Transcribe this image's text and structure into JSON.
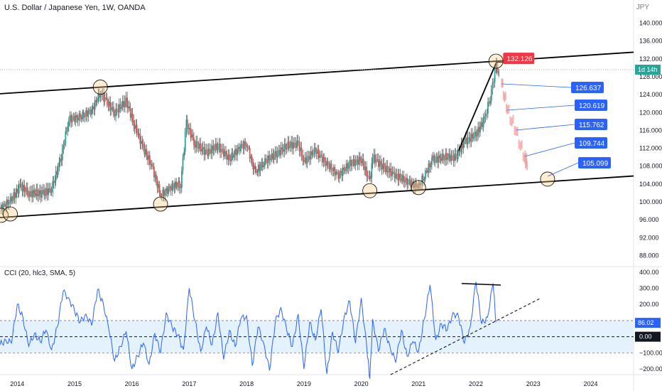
{
  "header": {
    "title": "U.S. Dollar / Japanese Yen, 1W, OANDA",
    "currency": "JPY"
  },
  "cci_panel": {
    "title": "CCI (20, hlc3, SMA, 5)",
    "current_value": "86.02",
    "zero_label": "0.00"
  },
  "price_axis": {
    "ticks": [
      "140.000",
      "136.000",
      "132.000",
      "128.000",
      "124.000",
      "120.000",
      "116.000",
      "112.000",
      "108.000",
      "104.000",
      "100.000",
      "96.000",
      "92.000",
      "88.000"
    ],
    "current_tag": "1d 14h"
  },
  "cci_axis": {
    "ticks": [
      "400.00",
      "300.00",
      "200.00",
      "−100.00",
      "−200.00"
    ]
  },
  "time_axis": {
    "ticks": [
      "2014",
      "2015",
      "2016",
      "2017",
      "2018",
      "2019",
      "2020",
      "2021",
      "2022",
      "2023",
      "2024"
    ]
  },
  "annotations": {
    "peak_label": "132.126",
    "targets": [
      "126.637",
      "120.619",
      "115.762",
      "109.744",
      "105.099"
    ]
  },
  "colors": {
    "up_candle": "#26a69a",
    "down_candle": "#ef5350",
    "cci_line": "#2962ff",
    "band_fill": "#e3f2fd",
    "peak_tag": "#f23645",
    "target_tag": "#2962ff",
    "current_tag": "#26a69a"
  },
  "chart_data": [
    {
      "type": "candlestick",
      "title": "U.S. Dollar / Japanese Yen, 1W, OANDA",
      "ylim": [
        86,
        142
      ],
      "xlim": [
        2013.7,
        2024.75
      ],
      "closes": [
        {
          "x": 2013.7,
          "y": 98.5
        },
        {
          "x": 2013.9,
          "y": 100.5
        },
        {
          "x": 2014.05,
          "y": 103.5
        },
        {
          "x": 2014.2,
          "y": 102.0
        },
        {
          "x": 2014.45,
          "y": 101.8
        },
        {
          "x": 2014.6,
          "y": 103.0
        },
        {
          "x": 2014.75,
          "y": 109.0
        },
        {
          "x": 2014.9,
          "y": 118.5
        },
        {
          "x": 2015.1,
          "y": 119.0
        },
        {
          "x": 2015.3,
          "y": 120.5
        },
        {
          "x": 2015.45,
          "y": 124.5
        },
        {
          "x": 2015.55,
          "y": 122.5
        },
        {
          "x": 2015.7,
          "y": 120.0
        },
        {
          "x": 2015.9,
          "y": 122.5
        },
        {
          "x": 2016.05,
          "y": 117.0
        },
        {
          "x": 2016.2,
          "y": 112.0
        },
        {
          "x": 2016.35,
          "y": 108.0
        },
        {
          "x": 2016.5,
          "y": 101.5
        },
        {
          "x": 2016.7,
          "y": 103.5
        },
        {
          "x": 2016.85,
          "y": 104.0
        },
        {
          "x": 2016.95,
          "y": 117.5
        },
        {
          "x": 2017.1,
          "y": 113.0
        },
        {
          "x": 2017.3,
          "y": 111.0
        },
        {
          "x": 2017.5,
          "y": 112.5
        },
        {
          "x": 2017.7,
          "y": 109.5
        },
        {
          "x": 2017.9,
          "y": 112.5
        },
        {
          "x": 2018.0,
          "y": 113.0
        },
        {
          "x": 2018.15,
          "y": 106.5
        },
        {
          "x": 2018.3,
          "y": 109.0
        },
        {
          "x": 2018.5,
          "y": 110.5
        },
        {
          "x": 2018.7,
          "y": 112.5
        },
        {
          "x": 2018.9,
          "y": 113.0
        },
        {
          "x": 2019.0,
          "y": 109.0
        },
        {
          "x": 2019.2,
          "y": 111.5
        },
        {
          "x": 2019.4,
          "y": 108.5
        },
        {
          "x": 2019.6,
          "y": 106.0
        },
        {
          "x": 2019.8,
          "y": 108.5
        },
        {
          "x": 2020.0,
          "y": 109.5
        },
        {
          "x": 2020.15,
          "y": 104.5
        },
        {
          "x": 2020.2,
          "y": 110.0
        },
        {
          "x": 2020.4,
          "y": 107.5
        },
        {
          "x": 2020.6,
          "y": 106.0
        },
        {
          "x": 2020.8,
          "y": 104.5
        },
        {
          "x": 2021.0,
          "y": 103.5
        },
        {
          "x": 2021.1,
          "y": 106.0
        },
        {
          "x": 2021.25,
          "y": 109.5
        },
        {
          "x": 2021.45,
          "y": 110.0
        },
        {
          "x": 2021.65,
          "y": 110.0
        },
        {
          "x": 2021.8,
          "y": 113.5
        },
        {
          "x": 2022.0,
          "y": 115.0
        },
        {
          "x": 2022.15,
          "y": 118.5
        },
        {
          "x": 2022.25,
          "y": 123.5
        },
        {
          "x": 2022.35,
          "y": 130.5
        },
        {
          "x": 2022.42,
          "y": 127.5
        }
      ],
      "projection": [
        {
          "x": 2022.45,
          "y": 126.6
        },
        {
          "x": 2022.55,
          "y": 120.6
        },
        {
          "x": 2022.7,
          "y": 115.8
        },
        {
          "x": 2022.85,
          "y": 109.7
        },
        {
          "x": 2022.9,
          "y": 108.5
        }
      ],
      "channel_upper": [
        {
          "x": 2013.7,
          "y": 124.2
        },
        {
          "x": 2024.75,
          "y": 133.5
        }
      ],
      "channel_lower": [
        {
          "x": 2013.7,
          "y": 96.5
        },
        {
          "x": 2024.75,
          "y": 105.8
        }
      ],
      "trendline": [
        {
          "x": 2021.7,
          "y": 111.5
        },
        {
          "x": 2022.35,
          "y": 131.0
        }
      ],
      "targets": [
        126.637,
        120.619,
        115.762,
        109.744,
        105.099
      ],
      "peak": 132.126
    },
    {
      "type": "line",
      "title": "CCI (20, hlc3, SMA, 5)",
      "ylim": [
        -235,
        430
      ],
      "levels": [
        100,
        0,
        -100
      ],
      "series": [
        {
          "x": [
            2013.7,
            2013.8,
            2013.9,
            2014.0,
            2014.1,
            2014.2,
            2014.3,
            2014.4,
            2014.5,
            2014.6,
            2014.7,
            2014.8,
            2014.9,
            2015.0,
            2015.1,
            2015.2,
            2015.3,
            2015.4,
            2015.5,
            2015.6,
            2015.7,
            2015.8,
            2015.9,
            2016.0,
            2016.1,
            2016.2,
            2016.3,
            2016.4,
            2016.5,
            2016.6,
            2016.7,
            2016.8,
            2016.9,
            2017.0,
            2017.1,
            2017.2,
            2017.3,
            2017.4,
            2017.5,
            2017.6,
            2017.7,
            2017.8,
            2017.9,
            2018.0,
            2018.1,
            2018.2,
            2018.3,
            2018.4,
            2018.5,
            2018.6,
            2018.7,
            2018.8,
            2018.9,
            2019.0,
            2019.1,
            2019.2,
            2019.3,
            2019.4,
            2019.5,
            2019.6,
            2019.7,
            2019.8,
            2019.9,
            2020.0,
            2020.1,
            2020.15,
            2020.2,
            2020.3,
            2020.4,
            2020.5,
            2020.6,
            2020.7,
            2020.8,
            2020.9,
            2021.0,
            2021.1,
            2021.2,
            2021.3,
            2021.4,
            2021.5,
            2021.6,
            2021.7,
            2021.8,
            2021.9,
            2022.0,
            2022.1,
            2022.2,
            2022.3,
            2022.35
          ],
          "values": [
            -50,
            -20,
            -40,
            200,
            120,
            -60,
            20,
            -30,
            40,
            -80,
            60,
            280,
            240,
            160,
            90,
            140,
            70,
            290,
            210,
            40,
            -150,
            -60,
            30,
            -200,
            -120,
            -40,
            -170,
            20,
            -100,
            150,
            60,
            10,
            -80,
            300,
            100,
            -90,
            60,
            -50,
            150,
            -140,
            40,
            -60,
            110,
            130,
            -180,
            60,
            -40,
            -210,
            90,
            180,
            40,
            -60,
            140,
            -200,
            90,
            -20,
            170,
            -230,
            30,
            -100,
            120,
            220,
            -40,
            240,
            -80,
            -260,
            110,
            -90,
            50,
            -60,
            -160,
            40,
            -120,
            -30,
            -90,
            110,
            320,
            -20,
            80,
            40,
            150,
            120,
            -40,
            60,
            340,
            80,
            120,
            330,
            90
          ]
        }
      ]
    }
  ]
}
